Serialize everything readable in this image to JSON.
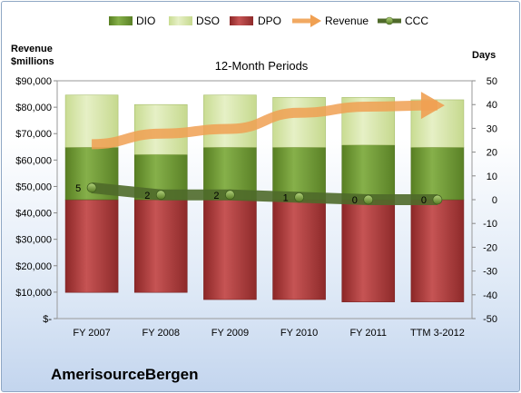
{
  "chart_data": {
    "type": "bar",
    "title": "12-Month Periods",
    "company": "AmerisourceBergen",
    "categories": [
      "FY 2007",
      "FY 2008",
      "FY 2009",
      "FY 2010",
      "FY 2011",
      "TTM 3-2012"
    ],
    "left_axis": {
      "title_line1": "Revenue",
      "title_line2": "$millions",
      "range": [
        0,
        90000
      ],
      "ticks": [
        "$-",
        "$10,000",
        "$20,000",
        "$30,000",
        "$40,000",
        "$50,000",
        "$60,000",
        "$70,000",
        "$80,000",
        "$90,000"
      ]
    },
    "right_axis": {
      "title": "Days",
      "range": [
        -50,
        50
      ],
      "ticks": [
        "-50",
        "-40",
        "-30",
        "-20",
        "-10",
        "0",
        "10",
        "20",
        "30",
        "40",
        "50"
      ]
    },
    "legend_placement": "top",
    "legend": [
      "DIO",
      "DSO",
      "DPO",
      "Revenue",
      "CCC"
    ],
    "series": [
      {
        "name": "DPO",
        "axis": "right",
        "color": "#b03a3a",
        "values": [
          -39,
          -39,
          -42,
          -42,
          -43,
          -43
        ]
      },
      {
        "name": "DIO",
        "axis": "right",
        "color": "#6f9a33",
        "values": [
          22,
          19,
          22,
          22,
          23,
          22
        ]
      },
      {
        "name": "DSO",
        "axis": "right",
        "color": "#d4e5a6",
        "values": [
          22,
          21,
          22,
          21,
          20,
          20
        ]
      },
      {
        "name": "Revenue",
        "axis": "left",
        "color": "#f0a052",
        "values": [
          66000,
          70000,
          71800,
          77900,
          80200,
          80700
        ]
      },
      {
        "name": "CCC",
        "axis": "right",
        "color": "#4f6a2a",
        "values": [
          5,
          2,
          2,
          1,
          0,
          0
        ]
      }
    ],
    "ccc_labels": [
      "5",
      "2",
      "2",
      "1",
      "0",
      "0"
    ]
  }
}
